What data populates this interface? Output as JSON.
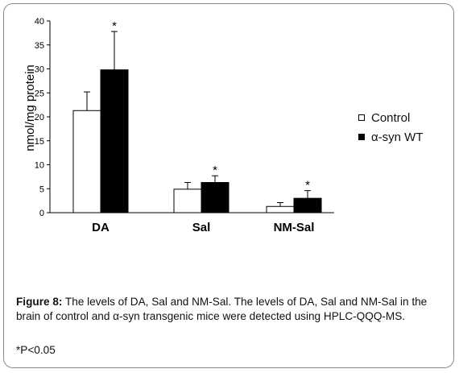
{
  "chart_data": {
    "type": "bar",
    "categories": [
      "DA",
      "Sal",
      "NM-Sal"
    ],
    "series": [
      {
        "name": "Control",
        "values": [
          21.3,
          4.9,
          1.3
        ],
        "errors": [
          3.9,
          1.4,
          0.8
        ],
        "color": "#ffffff"
      },
      {
        "name": "α-syn WT",
        "values": [
          29.8,
          6.3,
          3.0
        ],
        "errors": [
          8.0,
          1.4,
          1.6
        ],
        "color": "#000000"
      }
    ],
    "significance_marker": "*",
    "ylabel": "nmol/mg protein",
    "ylim": [
      0,
      40
    ],
    "yticks": [
      0,
      5,
      10,
      15,
      20,
      25,
      30,
      35,
      40
    ],
    "legend_position": "right"
  },
  "caption": {
    "figure_label": "Figure 8:",
    "text": " The levels of DA, Sal and NM-Sal. The levels of DA, Sal and NM-Sal in the brain of control and α-syn transgenic mice were detected using HPLC-QQQ-MS.",
    "note": "*P<0.05"
  }
}
